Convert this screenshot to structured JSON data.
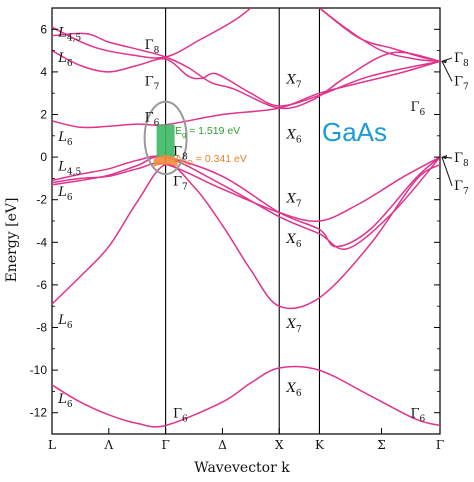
{
  "chart_data": {
    "type": "line",
    "title": "",
    "material": "GaAs",
    "xlabel": "Wavevector k",
    "ylabel": "Energy [eV]",
    "ylim": [
      -13,
      7
    ],
    "y_ticks": [
      6,
      4,
      2,
      0,
      -2,
      -4,
      -6,
      -8,
      -10,
      -12
    ],
    "k_points": [
      "L",
      "Λ",
      "Γ",
      "Δ",
      "X",
      "K",
      "Σ",
      "Γ"
    ],
    "k_positions": [
      0,
      0.5,
      1,
      1.5,
      2,
      2.354,
      2.9,
      3.415
    ],
    "band_color": "#e0338c",
    "annotations": {
      "eg": {
        "base": "E",
        "sub": "g",
        "rest": " = 1.519 eV",
        "color": "#2ca02c"
      },
      "dso": {
        "base": "Δ",
        "sub": "SO",
        "rest": " = 0.341 eV",
        "color": "#e8812a"
      }
    },
    "point_labels": [
      {
        "base": "L",
        "sub": "4,5",
        "k": 0.02,
        "e": 5.9
      },
      {
        "base": "L",
        "sub": "6",
        "k": 0.02,
        "e": 4.7
      },
      {
        "base": "L",
        "sub": "6",
        "k": 0.02,
        "e": 1.0
      },
      {
        "base": "L",
        "sub": "4,5",
        "k": 0.02,
        "e": -0.4
      },
      {
        "base": "L",
        "sub": "6",
        "k": 0.02,
        "e": -1.6
      },
      {
        "base": "L",
        "sub": "6",
        "k": 0.02,
        "e": -7.6
      },
      {
        "base": "L",
        "sub": "6",
        "k": 0.02,
        "e": -11.3
      },
      {
        "base": "Γ",
        "sub": "8",
        "k": 0.78,
        "e": 5.3
      },
      {
        "base": "Γ",
        "sub": "7",
        "k": 0.78,
        "e": 3.6
      },
      {
        "base": "Γ",
        "sub": "6",
        "k": 0.78,
        "e": 1.9
      },
      {
        "base": "Γ",
        "sub": "8",
        "k": 1.03,
        "e": 0.3
      },
      {
        "base": "Γ",
        "sub": "7",
        "k": 1.03,
        "e": -1.1
      },
      {
        "base": "Γ",
        "sub": "6",
        "k": 1.03,
        "e": -12.0
      },
      {
        "base": "X",
        "sub": "7",
        "k": 2.03,
        "e": 3.7
      },
      {
        "base": "X",
        "sub": "6",
        "k": 2.03,
        "e": 1.1
      },
      {
        "base": "X",
        "sub": "7",
        "k": 2.03,
        "e": -1.9
      },
      {
        "base": "X",
        "sub": "6",
        "k": 2.03,
        "e": -3.8
      },
      {
        "base": "X",
        "sub": "7",
        "k": 2.03,
        "e": -7.8
      },
      {
        "base": "X",
        "sub": "6",
        "k": 2.03,
        "e": -10.8
      },
      {
        "base": "Γ",
        "sub": "6",
        "k": 3.12,
        "e": 2.4
      },
      {
        "base": "Γ",
        "sub": "6",
        "k": 3.12,
        "e": -12.0
      }
    ],
    "right_labels": [
      {
        "base": "Γ",
        "sub": "8",
        "e": 4.7
      },
      {
        "base": "Γ",
        "sub": "7",
        "e": 3.6
      },
      {
        "base": "Γ",
        "sub": "8",
        "e": 0.0
      },
      {
        "base": "Γ",
        "sub": "7",
        "e": -1.3
      }
    ],
    "bands": [
      {
        "name": "band-1",
        "points": [
          [
            0,
            -10.7
          ],
          [
            0.25,
            -11.5
          ],
          [
            0.5,
            -12.1
          ],
          [
            0.75,
            -12.5
          ],
          [
            1,
            -12.6
          ],
          [
            1.5,
            -11.5
          ],
          [
            1.75,
            -10.6
          ],
          [
            2,
            -9.9
          ],
          [
            2.35,
            -10.0
          ],
          [
            2.8,
            -11.2
          ],
          [
            3.2,
            -12.3
          ],
          [
            3.415,
            -12.6
          ]
        ]
      },
      {
        "name": "band-2",
        "points": [
          [
            0,
            -6.9
          ],
          [
            0.25,
            -5.6
          ],
          [
            0.5,
            -4.2
          ],
          [
            0.75,
            -2.1
          ],
          [
            1,
            -0.35
          ],
          [
            1.25,
            -1.4
          ],
          [
            1.5,
            -3.2
          ],
          [
            1.75,
            -5.3
          ],
          [
            2,
            -7.0
          ],
          [
            2.354,
            -6.6
          ],
          [
            2.8,
            -4.1
          ],
          [
            3.2,
            -1.1
          ],
          [
            3.415,
            -0.35
          ]
        ]
      },
      {
        "name": "band-3",
        "points": [
          [
            0,
            -1.2
          ],
          [
            0.25,
            -1.0
          ],
          [
            0.5,
            -0.9
          ],
          [
            0.75,
            -0.55
          ],
          [
            1,
            -0.34
          ],
          [
            1.5,
            -1.5
          ],
          [
            2,
            -2.6
          ],
          [
            2.354,
            -3.0
          ],
          [
            2.7,
            -2.2
          ],
          [
            3.1,
            -0.9
          ],
          [
            3.415,
            0.0
          ]
        ]
      },
      {
        "name": "band-4",
        "points": [
          [
            0,
            -1.3
          ],
          [
            0.25,
            -1.1
          ],
          [
            0.5,
            -0.85
          ],
          [
            0.75,
            -0.4
          ],
          [
            1,
            0.0
          ],
          [
            1.5,
            -1.3
          ],
          [
            2,
            -2.8
          ],
          [
            2.354,
            -3.6
          ],
          [
            2.6,
            -4.3
          ],
          [
            3.0,
            -2.6
          ],
          [
            3.415,
            0.0
          ]
        ]
      },
      {
        "name": "band-5",
        "points": [
          [
            0,
            -1.1
          ],
          [
            0.25,
            -0.8
          ],
          [
            0.5,
            -0.55
          ],
          [
            0.75,
            -0.15
          ],
          [
            1,
            0.0
          ],
          [
            1.5,
            -0.9
          ],
          [
            2,
            -2.6
          ],
          [
            2.354,
            -3.4
          ],
          [
            2.5,
            -4.2
          ],
          [
            2.8,
            -3.4
          ],
          [
            3.2,
            -1.0
          ],
          [
            3.415,
            0.0
          ]
        ]
      },
      {
        "name": "band-6",
        "points": [
          [
            0,
            1.7
          ],
          [
            0.25,
            1.4
          ],
          [
            0.5,
            1.45
          ],
          [
            0.75,
            1.55
          ],
          [
            1,
            1.52
          ],
          [
            1.5,
            2.0
          ],
          [
            2,
            2.3
          ],
          [
            2.354,
            3.0
          ],
          [
            2.8,
            3.6
          ],
          [
            3.1,
            4.0
          ],
          [
            3.415,
            4.5
          ]
        ]
      },
      {
        "name": "band-7",
        "points": [
          [
            0,
            5.0
          ],
          [
            0.25,
            4.3
          ],
          [
            0.5,
            4.0
          ],
          [
            0.75,
            4.3
          ],
          [
            1,
            4.6
          ],
          [
            1.2,
            3.8
          ],
          [
            1.32,
            3.7
          ],
          [
            1.45,
            3.9
          ],
          [
            1.75,
            3.0
          ],
          [
            2,
            2.4
          ],
          [
            2.354,
            2.9
          ],
          [
            2.8,
            3.8
          ],
          [
            3.415,
            4.5
          ]
        ]
      },
      {
        "name": "band-8",
        "points": [
          [
            0,
            5.7
          ],
          [
            0.3,
            5.8
          ],
          [
            0.5,
            5.4
          ],
          [
            0.8,
            5.0
          ],
          [
            1,
            4.7
          ],
          [
            1.2,
            4.2
          ],
          [
            1.4,
            3.5
          ],
          [
            1.6,
            3.2
          ],
          [
            2,
            2.3
          ],
          [
            2.3,
            2.7
          ],
          [
            2.6,
            3.8
          ],
          [
            3.0,
            4.9
          ],
          [
            3.415,
            4.5
          ]
        ]
      },
      {
        "name": "band-9",
        "points": [
          [
            0,
            6.1
          ],
          [
            0.35,
            5.2
          ],
          [
            0.7,
            4.8
          ],
          [
            1,
            4.7
          ],
          [
            1.3,
            5.5
          ],
          [
            1.6,
            6.4
          ],
          [
            1.75,
            7.0
          ]
        ]
      },
      {
        "name": "band-10",
        "points": [
          [
            2.354,
            7.0
          ],
          [
            2.6,
            6.0
          ],
          [
            2.9,
            5.0
          ],
          [
            3.2,
            4.6
          ],
          [
            3.415,
            4.5
          ]
        ]
      },
      {
        "name": "band-11",
        "points": [
          [
            2.354,
            7.0
          ],
          [
            2.7,
            5.6
          ],
          [
            3.0,
            5.1
          ],
          [
            3.25,
            4.7
          ],
          [
            3.415,
            4.5
          ]
        ]
      }
    ]
  }
}
